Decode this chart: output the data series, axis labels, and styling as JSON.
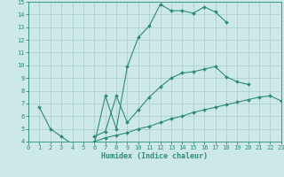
{
  "line1_x": [
    1,
    2,
    3,
    4,
    5,
    6,
    7,
    8,
    9,
    10,
    11,
    12,
    13,
    14,
    15,
    16,
    17,
    18,
    19
  ],
  "line1_y": [
    6.7,
    5.0,
    4.4,
    3.8,
    3.8,
    3.8,
    7.6,
    5.0,
    9.9,
    12.2,
    13.1,
    14.8,
    14.3,
    14.3,
    14.1,
    14.6,
    14.2,
    13.4,
    null
  ],
  "line2_x": [
    6,
    7,
    8,
    9,
    10,
    11,
    12,
    13,
    14,
    15,
    16,
    17,
    18,
    19,
    20,
    21,
    22
  ],
  "line2_y": [
    4.4,
    4.8,
    7.6,
    5.5,
    6.5,
    7.5,
    8.3,
    9.0,
    9.4,
    9.5,
    9.7,
    9.9,
    9.1,
    8.7,
    8.5,
    null,
    null
  ],
  "line3_x": [
    5,
    6,
    7,
    8,
    9,
    10,
    11,
    12,
    13,
    14,
    15,
    16,
    17,
    18,
    19,
    20,
    21,
    22,
    23
  ],
  "line3_y": [
    3.8,
    4.0,
    4.3,
    4.5,
    4.7,
    5.0,
    5.2,
    5.5,
    5.8,
    6.0,
    6.3,
    6.5,
    6.7,
    6.9,
    7.1,
    7.3,
    7.5,
    7.6,
    7.2
  ],
  "color": "#2e8b7a",
  "bg_color": "#cce8e8",
  "grid_color": "#aacccc",
  "xlabel": "Humidex (Indice chaleur)",
  "xlim": [
    0,
    23
  ],
  "ylim": [
    4,
    15
  ],
  "xticks": [
    0,
    1,
    2,
    3,
    4,
    5,
    6,
    7,
    8,
    9,
    10,
    11,
    12,
    13,
    14,
    15,
    16,
    17,
    18,
    19,
    20,
    21,
    22,
    23
  ],
  "yticks": [
    4,
    5,
    6,
    7,
    8,
    9,
    10,
    11,
    12,
    13,
    14,
    15
  ]
}
